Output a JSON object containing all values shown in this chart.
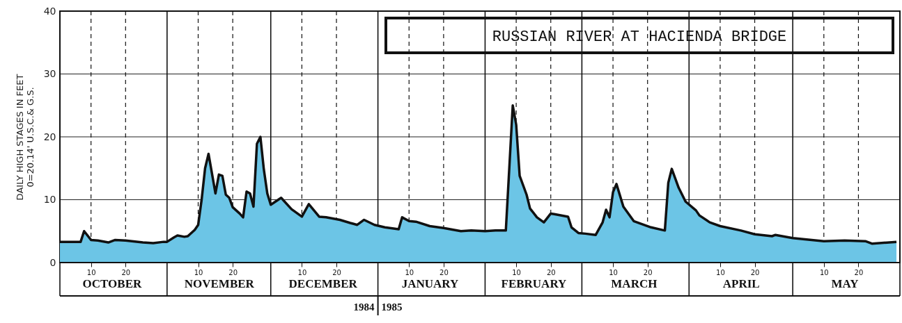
{
  "chart_data": {
    "type": "area",
    "title": "RUSSIAN RIVER AT HACIENDA BRIDGE",
    "ylabel": "DAILY HIGH STAGES IN FEET\n0=20.14' U.S.C.& G.S.",
    "x": [
      "1984-10-01",
      "1984-10-07",
      "1984-10-08",
      "1984-10-10",
      "1984-10-12",
      "1984-10-15",
      "1984-10-17",
      "1984-10-20",
      "1984-10-25",
      "1984-10-28",
      "1984-10-31",
      "1984-11-01",
      "1984-11-03",
      "1984-11-04",
      "1984-11-06",
      "1984-11-07",
      "1984-11-09",
      "1984-11-10",
      "1984-11-11",
      "1984-11-12",
      "1984-11-13",
      "1984-11-15",
      "1984-11-16",
      "1984-11-17",
      "1984-11-18",
      "1984-11-19",
      "1984-11-20",
      "1984-11-22",
      "1984-11-23",
      "1984-11-24",
      "1984-11-25",
      "1984-11-26",
      "1984-11-27",
      "1984-11-28",
      "1984-11-29",
      "1984-11-30",
      "1984-12-01",
      "1984-12-04",
      "1984-12-07",
      "1984-12-10",
      "1984-12-12",
      "1984-12-15",
      "1984-12-17",
      "1984-12-21",
      "1984-12-24",
      "1984-12-26",
      "1984-12-28",
      "1984-12-31",
      "1985-01-03",
      "1985-01-07",
      "1985-01-08",
      "1985-01-10",
      "1985-01-12",
      "1985-01-16",
      "1985-01-20",
      "1985-01-25",
      "1985-01-28",
      "1985-02-01",
      "1985-02-04",
      "1985-02-07",
      "1985-02-08",
      "1985-02-09",
      "1985-02-10",
      "1985-02-11",
      "1985-02-13",
      "1985-02-14",
      "1985-02-16",
      "1985-02-18",
      "1985-02-20",
      "1985-02-21",
      "1985-02-25",
      "1985-02-26",
      "1985-02-28",
      "1985-03-02",
      "1985-03-05",
      "1985-03-07",
      "1985-03-08",
      "1985-03-09",
      "1985-03-10",
      "1985-03-11",
      "1985-03-13",
      "1985-03-16",
      "1985-03-21",
      "1985-03-25",
      "1985-03-26",
      "1985-03-27",
      "1985-03-29",
      "1985-03-31",
      "1985-04-03",
      "1985-04-04",
      "1985-04-07",
      "1985-04-10",
      "1985-04-16",
      "1985-04-20",
      "1985-04-25",
      "1985-04-26",
      "1985-05-01",
      "1985-05-10",
      "1985-05-16",
      "1985-05-22",
      "1985-05-24",
      "1985-05-31"
    ],
    "series": [
      {
        "color": "#6cc5e6",
        "values": [
          3.3,
          3.3,
          5.0,
          3.6,
          3.5,
          3.2,
          3.6,
          3.5,
          3.2,
          3.1,
          3.3,
          3.3,
          4.0,
          4.3,
          4.1,
          4.2,
          5.2,
          6.0,
          10.0,
          15.0,
          17.3,
          11.0,
          14.0,
          13.8,
          10.8,
          10.3,
          8.8,
          7.8,
          7.2,
          11.3,
          11.0,
          8.9,
          18.9,
          20.0,
          14.8,
          11.0,
          9.2,
          10.3,
          8.5,
          7.3,
          9.3,
          7.3,
          7.2,
          6.8,
          6.3,
          6.0,
          6.8,
          6.0,
          5.6,
          5.3,
          7.2,
          6.6,
          6.5,
          5.8,
          5.5,
          5.0,
          5.1,
          5.0,
          5.1,
          5.1,
          15.0,
          25.0,
          21.9,
          13.8,
          10.8,
          8.6,
          7.2,
          6.4,
          7.8,
          7.7,
          7.3,
          5.6,
          4.7,
          4.6,
          4.4,
          6.4,
          8.4,
          7.2,
          11.2,
          12.5,
          8.9,
          6.6,
          5.6,
          5.1,
          12.7,
          14.9,
          11.9,
          9.7,
          8.3,
          7.5,
          6.4,
          5.8,
          5.1,
          4.5,
          4.2,
          4.4,
          3.9,
          3.4,
          3.5,
          3.4,
          3.0,
          3.3
        ]
      }
    ],
    "xlim": [
      "1984-10-01",
      "1985-06-01"
    ],
    "xticks": [
      {
        "value": "1984-10-01",
        "label": null
      },
      {
        "value": "1984-10-10",
        "label": "10"
      },
      {
        "value": "1984-10-20",
        "label": "20"
      },
      {
        "value": "1984-11-01",
        "label": null
      },
      {
        "value": "1984-11-10",
        "label": "10"
      },
      {
        "value": "1984-11-20",
        "label": "20"
      },
      {
        "value": "1984-12-01",
        "label": null
      },
      {
        "value": "1984-12-10",
        "label": "10"
      },
      {
        "value": "1984-12-20",
        "label": "20"
      },
      {
        "value": "1985-01-01",
        "label": null
      },
      {
        "value": "1985-01-10",
        "label": "10"
      },
      {
        "value": "1985-01-20",
        "label": "20"
      },
      {
        "value": "1985-02-01",
        "label": null
      },
      {
        "value": "1985-02-10",
        "label": "10"
      },
      {
        "value": "1985-02-20",
        "label": "20"
      },
      {
        "value": "1985-03-01",
        "label": null
      },
      {
        "value": "1985-03-10",
        "label": "10"
      },
      {
        "value": "1985-03-20",
        "label": "20"
      },
      {
        "value": "1985-04-01",
        "label": null
      },
      {
        "value": "1985-04-10",
        "label": "10"
      },
      {
        "value": "1985-04-20",
        "label": "20"
      },
      {
        "value": "1985-05-01",
        "label": null
      },
      {
        "value": "1985-05-10",
        "label": "10"
      },
      {
        "value": "1985-05-20",
        "label": "20"
      }
    ],
    "x2lim": [
      "1984-10-01",
      "1985-06-01"
    ],
    "x2ticks": [
      {
        "value": "1984-10-16",
        "label": "OCTOBER"
      },
      {
        "value": "1984-11-16",
        "label": "NOVEMBER"
      },
      {
        "value": "1984-12-16",
        "label": "DECEMBER"
      },
      {
        "value": "1985-01-16",
        "label": "JANUARY"
      },
      {
        "value": "1985-02-15",
        "label": "FEBRUARY"
      },
      {
        "value": "1985-03-16",
        "label": "MARCH"
      },
      {
        "value": "1985-04-16",
        "label": "APRIL"
      },
      {
        "value": "1985-05-16",
        "label": "MAY"
      }
    ],
    "ylim": [
      0,
      40
    ],
    "yticks": [
      0,
      10,
      20,
      30,
      40
    ],
    "grid": true,
    "annotations": [
      "1984",
      "1985"
    ]
  }
}
